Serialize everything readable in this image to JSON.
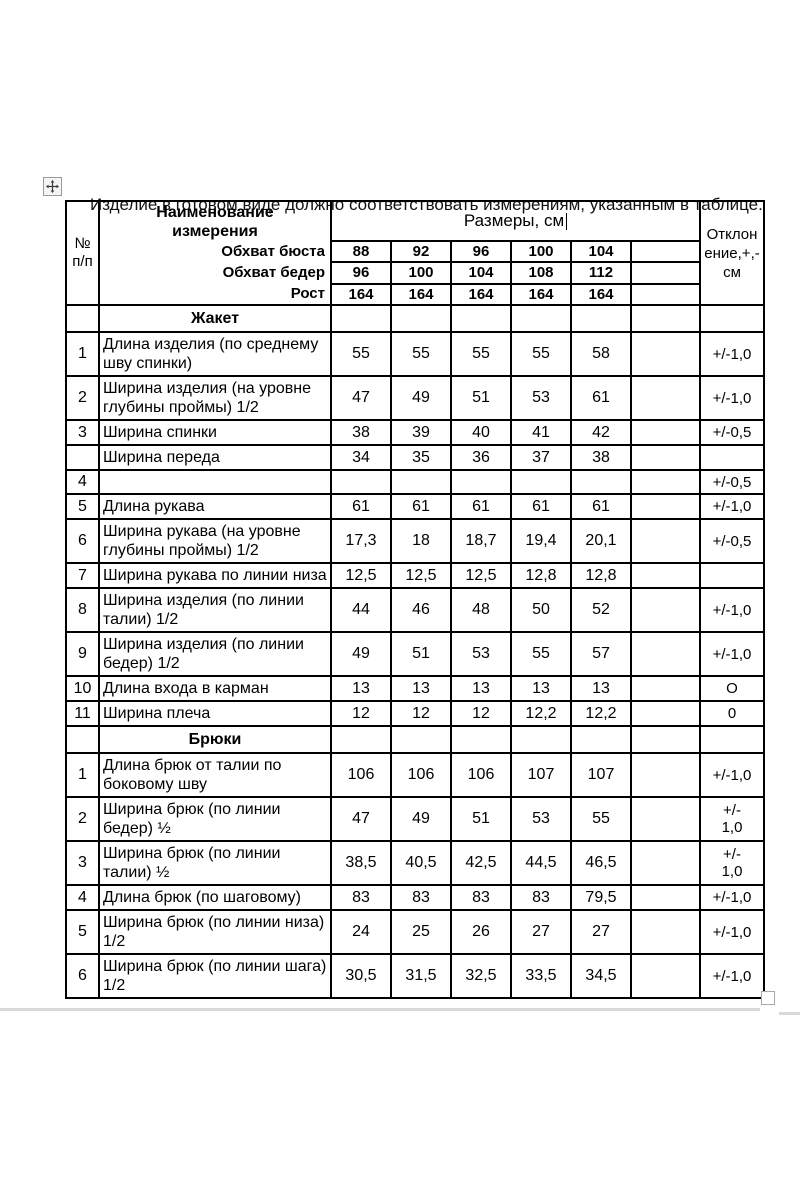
{
  "intro_text": "Изделие в готовом виде должно соответствовать измерениям, указанным в таблице.",
  "colors": {
    "border": "#000000",
    "page_bg": "#ffffff",
    "bottom_rule": "#d9d9d9"
  },
  "icons": {
    "move_handle": "move-cross-icon",
    "resize_handle": "table-resize-square"
  },
  "table": {
    "header": {
      "num": "№\nп/п",
      "name_title": "Наименование\nизмерения",
      "sizes_title": "Размеры, см",
      "tolerance_title": "Отклон\nение,+,-\nсм",
      "sub_rows": [
        {
          "label": "Обхват бюста",
          "values": [
            "88",
            "92",
            "96",
            "100",
            "104"
          ]
        },
        {
          "label": "Обхват бедер",
          "values": [
            "96",
            "100",
            "104",
            "108",
            "112"
          ]
        },
        {
          "label": "Рост",
          "values": [
            "164",
            "164",
            "164",
            "164",
            "164"
          ]
        }
      ]
    },
    "sections": [
      {
        "title": "Жакет",
        "rows": [
          {
            "num": "1",
            "name": "Длина изделия (по среднему шву спинки)",
            "values": [
              "55",
              "55",
              "55",
              "55",
              "58"
            ],
            "tol": "+/-1,0"
          },
          {
            "num": "2",
            "name": "Ширина изделия (на уровне глубины проймы) 1/2",
            "values": [
              "47",
              "49",
              "51",
              "53",
              "61"
            ],
            "tol": "+/-1,0"
          },
          {
            "num": "3",
            "name": "Ширина спинки",
            "values": [
              "38",
              "39",
              "40",
              "41",
              "42"
            ],
            "tol": "+/-0,5"
          },
          {
            "num": "",
            "name": "Ширина переда",
            "values": [
              "34",
              "35",
              "36",
              "37",
              "38"
            ],
            "tol": ""
          },
          {
            "num": "4",
            "name": "",
            "values": [
              "",
              "",
              "",
              "",
              ""
            ],
            "tol": "+/-0,5"
          },
          {
            "num": "5",
            "name": "Длина рукава",
            "values": [
              "61",
              "61",
              "61",
              "61",
              "61"
            ],
            "tol": "+/-1,0"
          },
          {
            "num": "6",
            "name": "Ширина рукава (на уровне глубины проймы) 1/2",
            "values": [
              "17,3",
              "18",
              "18,7",
              "19,4",
              "20,1"
            ],
            "tol": "+/-0,5"
          },
          {
            "num": "7",
            "name": "Ширина рукава по линии низа",
            "values": [
              "12,5",
              "12,5",
              "12,5",
              "12,8",
              "12,8"
            ],
            "tol": ""
          },
          {
            "num": "8",
            "name": "Ширина изделия (по линии талии) 1/2",
            "values": [
              "44",
              "46",
              "48",
              "50",
              "52"
            ],
            "tol": "+/-1,0"
          },
          {
            "num": "9",
            "name": "Ширина изделия (по линии бедер) 1/2",
            "values": [
              "49",
              "51",
              "53",
              "55",
              "57"
            ],
            "tol": "+/-1,0"
          },
          {
            "num": "10",
            "name": "Длина входа в карман",
            "values": [
              "13",
              "13",
              "13",
              "13",
              "13"
            ],
            "tol": "О"
          },
          {
            "num": "11",
            "name": "Ширина плеча",
            "values": [
              "12",
              "12",
              "12",
              "12,2",
              "12,2"
            ],
            "tol": "0"
          }
        ]
      },
      {
        "title": "Брюки",
        "rows": [
          {
            "num": "1",
            "name": "Длина брюк от талии по боковому шву",
            "values": [
              "106",
              "106",
              "106",
              "107",
              "107"
            ],
            "tol": "+/-1,0"
          },
          {
            "num": "2",
            "name": "Ширина брюк (по линии бедер) ½",
            "values": [
              "47",
              "49",
              "51",
              "53",
              "55"
            ],
            "tol": "+/-\n1,0"
          },
          {
            "num": "3",
            "name": "Ширина брюк (по линии талии) ½",
            "values": [
              "38,5",
              "40,5",
              "42,5",
              "44,5",
              "46,5"
            ],
            "tol": "+/-\n1,0"
          },
          {
            "num": "4",
            "name": "Длина брюк (по шаговому)",
            "values": [
              "83",
              "83",
              "83",
              "83",
              "79,5"
            ],
            "tol": "+/-1,0"
          },
          {
            "num": "5",
            "name": "Ширина брюк (по линии низа) 1/2",
            "values": [
              "24",
              "25",
              "26",
              "27",
              "27"
            ],
            "tol": "+/-1,0"
          },
          {
            "num": "6",
            "name": "Ширина брюк (по линии шага) 1/2",
            "values": [
              "30,5",
              "31,5",
              "32,5",
              "33,5",
              "34,5"
            ],
            "tol": "+/-1,0"
          }
        ]
      }
    ]
  }
}
